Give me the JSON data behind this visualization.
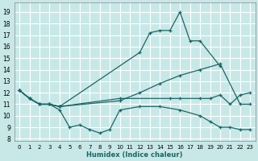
{
  "xlabel": "Humidex (Indice chaleur)",
  "bg_color": "#c8e8e8",
  "grid_color": "#ffffff",
  "line_color": "#1a6666",
  "xlim": [
    -0.5,
    23.5
  ],
  "ylim": [
    7.8,
    19.8
  ],
  "xticks": [
    0,
    1,
    2,
    3,
    4,
    5,
    6,
    7,
    8,
    9,
    10,
    11,
    12,
    13,
    14,
    15,
    16,
    17,
    18,
    19,
    20,
    21,
    22,
    23
  ],
  "yticks": [
    8,
    9,
    10,
    11,
    12,
    13,
    14,
    15,
    16,
    17,
    18,
    19
  ],
  "lines": [
    {
      "x": [
        0,
        1,
        2,
        3,
        4,
        12,
        13,
        14,
        15,
        16,
        17,
        18,
        20
      ],
      "y": [
        12.2,
        11.5,
        11.0,
        11.0,
        10.8,
        15.5,
        17.2,
        17.4,
        17.4,
        19.0,
        16.5,
        16.5,
        14.3
      ]
    },
    {
      "x": [
        0,
        1,
        2,
        3,
        4,
        10,
        12,
        14,
        16,
        18,
        20,
        22,
        23
      ],
      "y": [
        12.2,
        11.5,
        11.0,
        11.0,
        10.8,
        11.3,
        12.0,
        12.8,
        13.5,
        14.0,
        14.5,
        11.0,
        11.0
      ]
    },
    {
      "x": [
        0,
        1,
        2,
        3,
        4,
        10,
        15,
        16,
        18,
        19,
        20,
        21,
        22,
        23
      ],
      "y": [
        12.2,
        11.5,
        11.0,
        11.0,
        10.8,
        11.5,
        11.5,
        11.5,
        11.5,
        11.5,
        11.8,
        11.0,
        11.8,
        12.0
      ]
    },
    {
      "x": [
        0,
        1,
        2,
        3,
        4,
        5,
        6,
        7,
        8,
        9,
        10,
        12,
        14,
        16,
        18,
        19,
        20,
        21,
        22,
        23
      ],
      "y": [
        12.2,
        11.5,
        11.0,
        11.0,
        10.5,
        9.0,
        9.2,
        8.8,
        8.5,
        8.8,
        10.5,
        10.8,
        10.8,
        10.5,
        10.0,
        9.5,
        9.0,
        9.0,
        8.8,
        8.8
      ]
    }
  ]
}
